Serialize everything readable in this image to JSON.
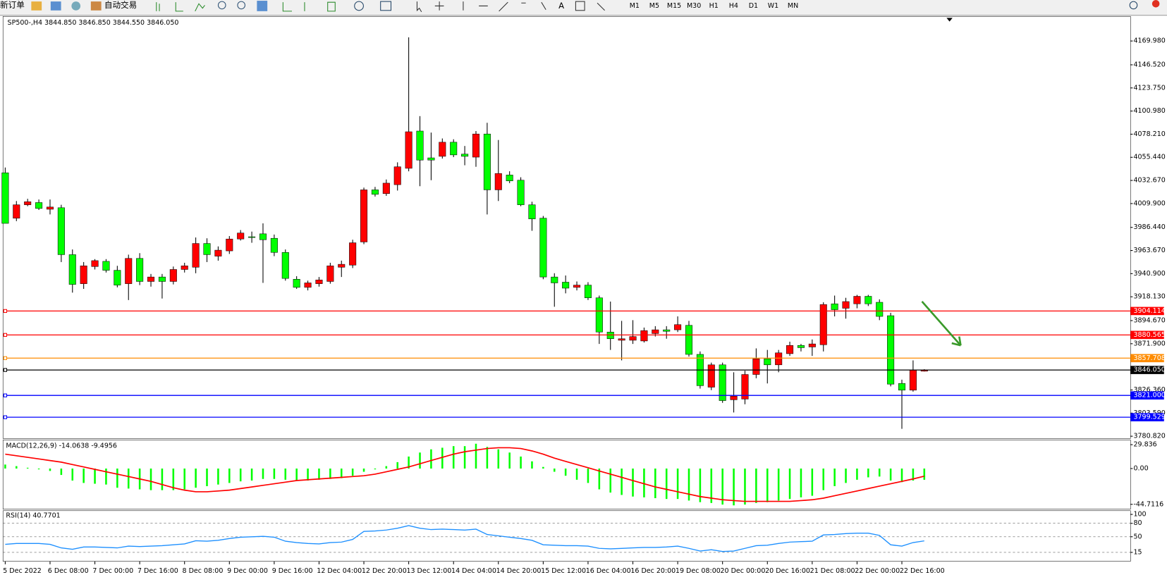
{
  "toolbar": {
    "new_order": "新订单",
    "auto_trading": "自动交易",
    "timeframes": [
      "M1",
      "M5",
      "M15",
      "M30",
      "H1",
      "H4",
      "D1",
      "W1",
      "MN"
    ]
  },
  "chart_data": [
    {
      "type": "candlestick",
      "title": "SP500-,H4  3844.850 3846.850 3844.550 3846.050",
      "up_color": "#ff0000",
      "down_color": "#00ff00",
      "categories": [
        "5 Dec 2022",
        null,
        null,
        null,
        "6 Dec 08:00",
        null,
        null,
        null,
        "7 Dec 00:00",
        null,
        null,
        null,
        "7 Dec 16:00",
        null,
        null,
        null,
        "8 Dec 08:00",
        null,
        null,
        null,
        "9 Dec 00:00",
        null,
        null,
        null,
        "9 Dec 16:00",
        null,
        null,
        null,
        "12 Dec 04:00",
        null,
        null,
        null,
        "12 Dec 20:00",
        null,
        null,
        null,
        "13 Dec 12:00",
        null,
        null,
        null,
        "14 Dec 04:00",
        null,
        null,
        null,
        "14 Dec 20:00",
        null,
        null,
        null,
        "15 Dec 12:00",
        null,
        null,
        null,
        "16 Dec 04:00",
        null,
        null,
        null,
        "16 Dec 20:00",
        null,
        null,
        null,
        "19 Dec 08:00",
        null,
        null,
        null,
        "20 Dec 00:00",
        null,
        null,
        null,
        "20 Dec 16:00",
        null,
        null,
        null,
        "21 Dec 08:00",
        null,
        null,
        null,
        "22 Dec 00:00",
        null,
        null,
        null,
        "22 Dec 16:00",
        null,
        null
      ],
      "open": [
        4040.2,
        3995.5,
        4008.7,
        4010.9,
        4004.3,
        4005.8,
        3959.6,
        3931.0,
        3947.9,
        3953.0,
        3944.2,
        3931.0,
        3955.9,
        3933.2,
        3937.6,
        3933.2,
        3945.0,
        3947.2,
        3970.6,
        3958.1,
        3963.3,
        3975.0,
        3977.2,
        3980.1,
        3975.7,
        3961.8,
        3935.4,
        3927.4,
        3931.0,
        3933.2,
        3947.2,
        3949.3,
        3972.1,
        4023.4,
        4019.7,
        4028.5,
        4044.6,
        4081.3,
        4054.9,
        4056.4,
        4070.3,
        4058.6,
        4055.6,
        4078.4,
        4023.4,
        4038.0,
        4032.9,
        4008.7,
        3995.5,
        3937.6,
        3932.5,
        3927.4,
        3929.6,
        3917.1,
        3883.4,
        3875.3,
        3875.3,
        3874.6,
        3881.9,
        3885.6,
        3885.6,
        3890.0,
        3861.4,
        3829.1,
        3851.1,
        3816.7,
        3817.4,
        3841.6,
        3857.0,
        3851.1,
        3862.1,
        3870.2,
        3868.7,
        3870.9,
        3911.2,
        3906.8,
        3911.2,
        3918.6,
        3912.7,
        3899.5,
        3832.8,
        3826.2,
        3844.85
      ],
      "high": [
        4045.4,
        4012.4,
        4014.6,
        4013.9,
        4013.9,
        4008.7,
        3964.7,
        3952.3,
        3955.2,
        3955.2,
        3948.6,
        3959.6,
        3961.1,
        3940.6,
        3940.6,
        3947.9,
        3951.6,
        3976.5,
        3975.7,
        3967.7,
        3977.9,
        3983.8,
        3982.3,
        3990.4,
        3979.4,
        3964.7,
        3938.4,
        3934.0,
        3937.6,
        3951.6,
        3953.7,
        3974.3,
        4025.6,
        4026.3,
        4033.6,
        4050.5,
        4173.6,
        4096.0,
        4079.8,
        4074.0,
        4073.2,
        4066.6,
        4081.3,
        4089.4,
        4072.5,
        4041.7,
        4035.8,
        4011.7,
        3997.7,
        3941.3,
        3939.1,
        3933.2,
        3932.5,
        3919.3,
        3913.4,
        3894.4,
        3895.1,
        3887.8,
        3889.2,
        3889.2,
        3898.8,
        3894.4,
        3864.3,
        3853.3,
        3853.3,
        3843.8,
        3845.3,
        3867.3,
        3865.8,
        3865.8,
        3873.9,
        3871.7,
        3876.1,
        3912.7,
        3919.3,
        3917.1,
        3920.0,
        3920.0,
        3915.6,
        3902.4,
        3836.5,
        3855.5,
        3846.85
      ],
      "low": [
        3990.4,
        3992.6,
        4007.3,
        4003.6,
        3999.2,
        3952.3,
        3922.2,
        3925.9,
        3945.0,
        3942.0,
        3927.4,
        3914.9,
        3929.6,
        3928.1,
        3916.4,
        3930.3,
        3942.0,
        3941.3,
        3952.3,
        3953.7,
        3960.3,
        3973.5,
        3971.3,
        3931.8,
        3958.1,
        3934.0,
        3925.9,
        3924.4,
        3928.1,
        3931.0,
        3937.6,
        3946.4,
        3969.9,
        4016.8,
        4017.5,
        4022.7,
        4041.7,
        4027.0,
        4032.9,
        4054.2,
        4055.6,
        4047.6,
        4046.1,
        3999.2,
        4012.4,
        4030.0,
        4007.3,
        3983.1,
        3935.4,
        3908.3,
        3921.5,
        3924.4,
        3914.9,
        3871.7,
        3865.8,
        3855.5,
        3871.7,
        3873.1,
        3879.0,
        3876.8,
        3883.4,
        3859.2,
        3827.7,
        3826.2,
        3813.7,
        3804.2,
        3812.3,
        3837.9,
        3832.8,
        3843.8,
        3859.9,
        3864.3,
        3859.9,
        3864.3,
        3898.8,
        3896.6,
        3906.8,
        3909.0,
        3895.1,
        3829.9,
        3788.1,
        3824.7,
        3844.55
      ],
      "close": [
        3990.4,
        4008.7,
        4011.7,
        4005.1,
        4006.5,
        3959.6,
        3930.3,
        3948.6,
        3953.7,
        3944.2,
        3929.6,
        3955.9,
        3933.2,
        3937.6,
        3933.2,
        3945.0,
        3948.6,
        3970.6,
        3959.6,
        3964.0,
        3975.0,
        3980.9,
        3977.0,
        3974.3,
        3961.8,
        3936.2,
        3927.4,
        3931.8,
        3934.7,
        3948.6,
        3950.1,
        3971.3,
        4023.4,
        4019.0,
        4030.0,
        4046.1,
        4080.6,
        4052.7,
        4052.7,
        4070.3,
        4057.8,
        4056.4,
        4078.4,
        4023.4,
        4039.5,
        4032.2,
        4008.7,
        3994.8,
        3937.6,
        3931.8,
        3926.6,
        3929.6,
        3917.1,
        3883.4,
        3876.8,
        3876.8,
        3879.0,
        3884.8,
        3885.6,
        3884.1,
        3890.7,
        3861.4,
        3830.6,
        3851.1,
        3815.9,
        3820.3,
        3841.6,
        3857.0,
        3851.1,
        3862.9,
        3870.2,
        3868.0,
        3871.7,
        3910.5,
        3905.4,
        3913.4,
        3918.6,
        3911.2,
        3898.8,
        3832.1,
        3826.2,
        3846.0,
        3846.05
      ],
      "ylim": [
        3778.6,
        4194.2
      ],
      "yticks": [
        {
          "value": 4169.98,
          "label": "4169.980"
        },
        {
          "value": 4146.52,
          "label": "4146.520"
        },
        {
          "value": 4123.75,
          "label": "4123.750"
        },
        {
          "value": 4100.98,
          "label": "4100.980"
        },
        {
          "value": 4078.21,
          "label": "4078.210"
        },
        {
          "value": 4055.44,
          "label": "4055.440"
        },
        {
          "value": 4032.67,
          "label": "4032.670"
        },
        {
          "value": 4009.9,
          "label": "4009.900"
        },
        {
          "value": 3986.44,
          "label": "3986.440"
        },
        {
          "value": 3963.67,
          "label": "3963.670"
        },
        {
          "value": 3940.9,
          "label": "3940.900"
        },
        {
          "value": 3918.13,
          "label": "3918.130"
        },
        {
          "value": 3894.67,
          "label": "3894.670"
        },
        {
          "value": 3871.9,
          "label": "3871.900"
        },
        {
          "value": 3826.36,
          "label": "3826.360"
        },
        {
          "value": 3803.59,
          "label": "3803.590"
        },
        {
          "value": 3780.82,
          "label": "3780.820"
        }
      ],
      "levels": [
        {
          "value": 3904.114,
          "label": "3904.114",
          "color": "#ff0000"
        },
        {
          "value": 3880.565,
          "label": "3880.565",
          "color": "#ff0000"
        },
        {
          "value": 3857.708,
          "label": "3857.708",
          "color": "#ff8c00"
        },
        {
          "value": 3846.05,
          "label": "3846.050",
          "color": "#000000"
        },
        {
          "value": 3821.0,
          "label": "3821.000",
          "color": "#0000ff"
        },
        {
          "value": 3799.529,
          "label": "3799.529",
          "color": "#0000ff"
        }
      ]
    },
    {
      "type": "macd",
      "title": "MACD(12,26,9) -14.0638 -9.4956",
      "histogram_color": "#00ff00",
      "signal_color": "#ff0000",
      "histogram": [
        5,
        3,
        1,
        -1,
        -3,
        -8,
        -15,
        -18,
        -19,
        -20,
        -24,
        -25,
        -26,
        -27,
        -27,
        -27,
        -26,
        -24,
        -22,
        -20,
        -18,
        -16,
        -15,
        -13,
        -13,
        -14,
        -15,
        -15,
        -14,
        -13,
        -12,
        -9,
        -4,
        -1,
        3,
        8,
        15,
        20,
        24,
        26,
        28,
        28,
        31,
        27,
        24,
        20,
        15,
        9,
        2,
        -4,
        -9,
        -14,
        -18,
        -26,
        -30,
        -33,
        -35,
        -36,
        -37,
        -38,
        -38,
        -40,
        -42,
        -43,
        -45,
        -46,
        -45,
        -43,
        -42,
        -40,
        -38,
        -36,
        -34,
        -27,
        -22,
        -18,
        -14,
        -11,
        -10,
        -15,
        -17,
        -15,
        -14.0638
      ],
      "signal": [
        18,
        16,
        14,
        12,
        10,
        8,
        5,
        2,
        -1,
        -4,
        -7,
        -10,
        -13,
        -16,
        -20,
        -24,
        -27,
        -29,
        -29,
        -28,
        -27,
        -25,
        -23,
        -21,
        -19,
        -17,
        -15,
        -14,
        -13,
        -12,
        -11,
        -10,
        -9,
        -7,
        -4,
        -1,
        2,
        6,
        10,
        14,
        18,
        21,
        23,
        25,
        26,
        26,
        25,
        22,
        18,
        13,
        9,
        5,
        1,
        -3,
        -7,
        -11,
        -15,
        -19,
        -23,
        -26,
        -29,
        -32,
        -35,
        -37,
        -39,
        -40,
        -41,
        -41,
        -41,
        -41,
        -41,
        -40,
        -39,
        -37,
        -34,
        -31,
        -28,
        -25,
        -22,
        -19,
        -16,
        -13,
        -9.4956
      ],
      "ylim": [
        -50.8,
        35.7
      ],
      "yticks": [
        29.836,
        {
          "value": 0,
          "label": "0.00"
        },
        -44.7116
      ]
    },
    {
      "type": "line",
      "title": "RSI(14) 40.7701",
      "color": "#1e90ff",
      "values": [
        33,
        35,
        35,
        35,
        33,
        25,
        22,
        27,
        27,
        26,
        25,
        29,
        28,
        29,
        30,
        32,
        34,
        41,
        40,
        42,
        46,
        49,
        50,
        51,
        49,
        40,
        37,
        35,
        34,
        37,
        38,
        44,
        62,
        63,
        65,
        69,
        75,
        69,
        66,
        67,
        66,
        65,
        67,
        55,
        52,
        49,
        46,
        42,
        32,
        31,
        30,
        30,
        29,
        24,
        23,
        24,
        25,
        26,
        26,
        27,
        29,
        24,
        18,
        21,
        17,
        18,
        24,
        30,
        31,
        35,
        38,
        39,
        40,
        54,
        55,
        57,
        58,
        58,
        53,
        32,
        29,
        37,
        40.7701
      ],
      "ylim": [
        -5,
        108.3
      ],
      "yticks": [
        100,
        80,
        50,
        15
      ]
    }
  ]
}
